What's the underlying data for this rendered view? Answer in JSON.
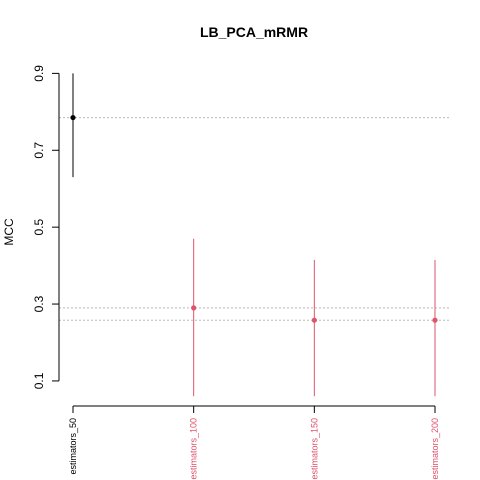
{
  "chart_data": {
    "type": "scatter",
    "title": "LB_PCA_mRMR",
    "xlabel": "",
    "ylabel": "MCC",
    "ylim": [
      0.04,
      0.94
    ],
    "yticks": [
      0.1,
      0.3,
      0.5,
      0.7,
      0.9
    ],
    "ytick_labels": [
      "0.1",
      "0.3",
      "0.5",
      "0.7",
      "0.9"
    ],
    "categories": [
      "estimators_50",
      "estimators_100",
      "estimators_150",
      "estimators_200"
    ],
    "values": [
      0.785,
      0.29,
      0.258,
      0.258
    ],
    "lower": [
      0.63,
      0.06,
      0.06,
      0.06
    ],
    "upper": [
      0.9,
      0.47,
      0.415,
      0.415
    ],
    "colors": [
      "#000000",
      "#DF536B",
      "#DF536B",
      "#DF536B"
    ],
    "reference_lines": [
      0.785,
      0.29,
      0.258
    ],
    "grid": false,
    "legend": "none"
  }
}
